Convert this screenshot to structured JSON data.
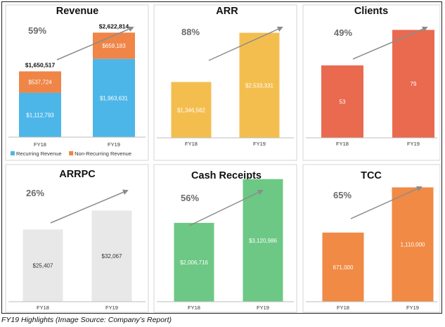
{
  "caption": "FY19 Highlights (Image Source: Company’s Report)",
  "chart_data": [
    {
      "type": "bar",
      "stacked": true,
      "title": "Revenue",
      "growth_label": "59%",
      "categories": [
        "FY18",
        "FY19"
      ],
      "series": [
        {
          "name": "Recurring Revenue",
          "values": [
            1112793,
            1963631
          ],
          "labels": [
            "$1,112,793",
            "$1,963,631"
          ],
          "color": "#4DB6E8"
        },
        {
          "name": "Non-Recurring Revenue",
          "values": [
            537724,
            659183
          ],
          "labels": [
            "$537,724",
            "$659,183"
          ],
          "color": "#EF8547"
        }
      ],
      "totals": [
        "$1,650,517",
        "$2,622,814"
      ],
      "legend_position": "bottom-left",
      "ylim": [
        0,
        3000000
      ],
      "grid": false
    },
    {
      "type": "bar",
      "title": "ARR",
      "growth_label": "88%",
      "categories": [
        "FY18",
        "FY19"
      ],
      "values": [
        1346562,
        2533331
      ],
      "labels": [
        "$1,346,562",
        "$2,533,331"
      ],
      "color": "#F4BE4F",
      "ylim": [
        0,
        2900000
      ],
      "grid": false
    },
    {
      "type": "bar",
      "title": "Clients",
      "growth_label": "49%",
      "categories": [
        "FY18",
        "FY19"
      ],
      "values": [
        53,
        79
      ],
      "labels": [
        "53",
        "79"
      ],
      "color": "#E96A4F",
      "ylim": [
        0,
        88
      ],
      "grid": false
    },
    {
      "type": "bar",
      "title": "ARRPC",
      "growth_label": "26%",
      "categories": [
        "FY18",
        "FY19"
      ],
      "values": [
        25407,
        32067
      ],
      "labels": [
        "$25,407",
        "$32,067"
      ],
      "color": "#E8E8E8",
      "ylim": [
        0,
        46000
      ],
      "grid": false
    },
    {
      "type": "bar",
      "title": "Cash Receipts",
      "growth_label": "56%",
      "categories": [
        "FY18",
        "FY19"
      ],
      "values": [
        2006716,
        3120986
      ],
      "labels": [
        "$2,006,716",
        "$3,120,986"
      ],
      "color": "#6CC884",
      "ylim": [
        0,
        3330000
      ],
      "grid": false
    },
    {
      "type": "bar",
      "title": "TCC",
      "growth_label": "65%",
      "categories": [
        "FY18",
        "FY19"
      ],
      "values": [
        671000,
        1110000
      ],
      "labels": [
        "671,000",
        "1,110,000"
      ],
      "color": "#F08A45",
      "ylim": [
        0,
        1270000
      ],
      "grid": false
    }
  ]
}
